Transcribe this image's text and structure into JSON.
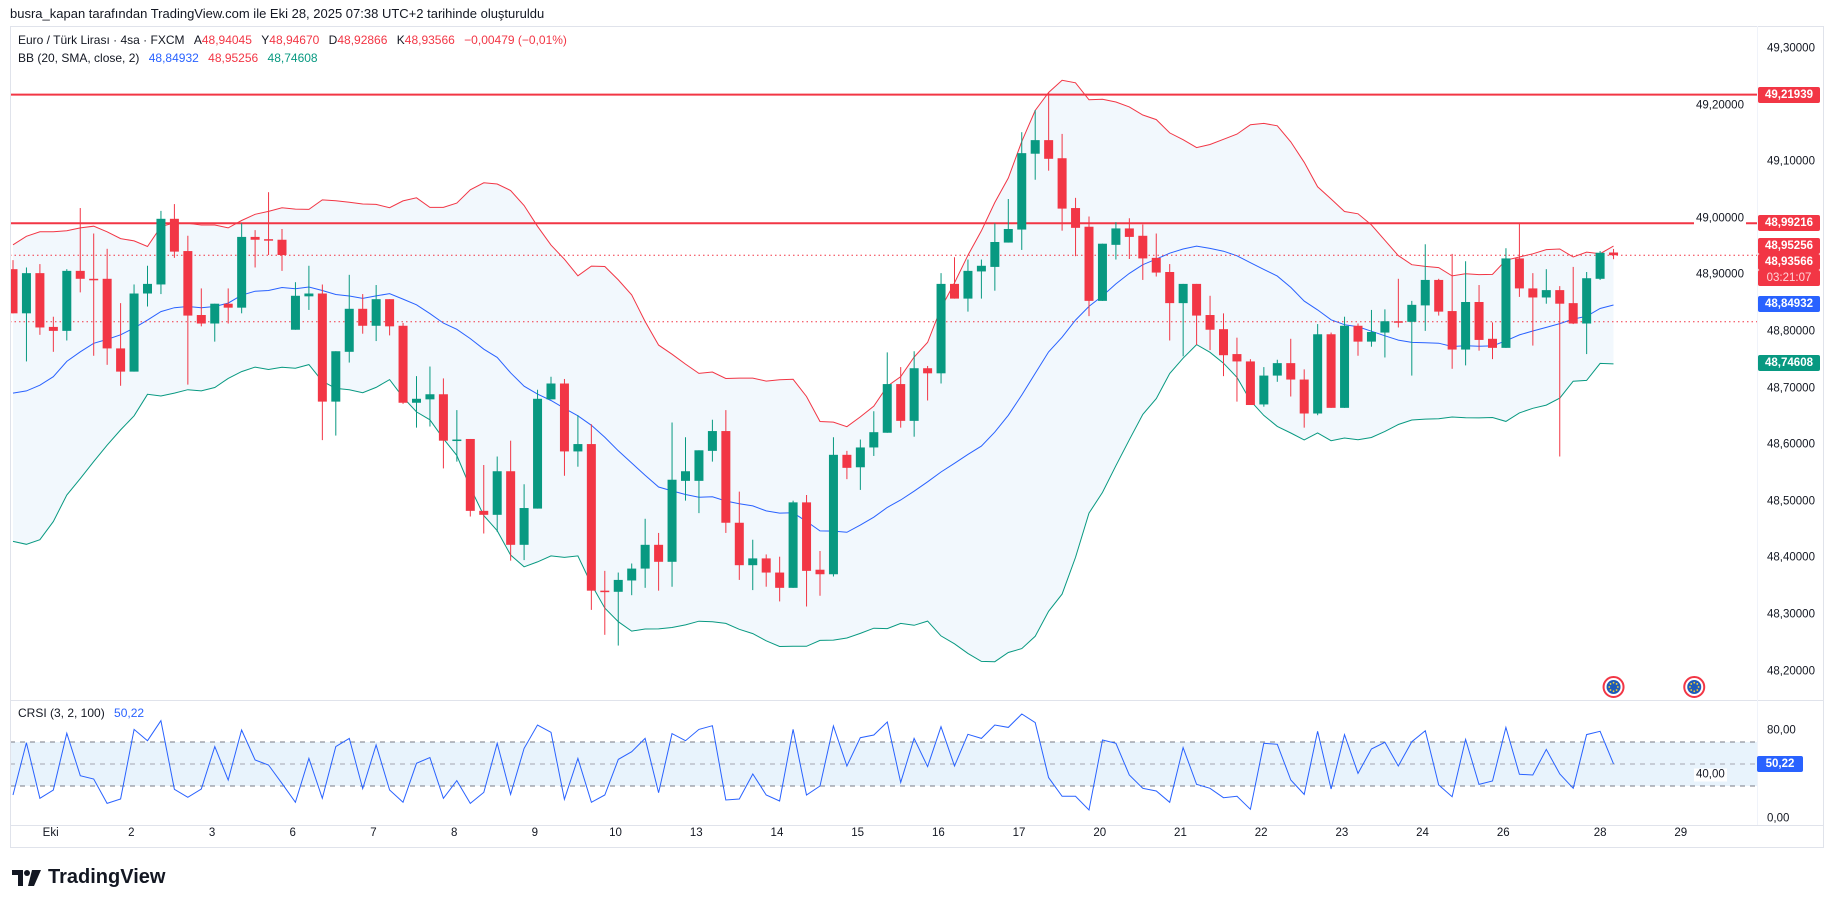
{
  "header": {
    "text": "busra_kapan tarafından TradingView.com ile Eki 28, 2025 07:38 UTC+2 tarihinde oluşturuldu"
  },
  "legend": {
    "symbol": "Euro / Türk Lirası · 4sa · FXCM",
    "open_label": "A",
    "open": "48,94045",
    "high_label": "Y",
    "high": "48,94670",
    "low_label": "D",
    "low": "48,92866",
    "close_label": "K",
    "close": "48,93566",
    "change": "−0,00479 (−0,01%)",
    "bb_title": "BB (20, SMA, close, 2)",
    "bb_basis": "48,84932",
    "bb_upper": "48,95256",
    "bb_lower": "48,74608"
  },
  "crsi_legend": {
    "title": "CRSI (3, 2, 100)",
    "value": "50,22"
  },
  "logo": {
    "text": "TradingView"
  },
  "colors": {
    "up": "#089981",
    "down": "#f23645",
    "basis": "#2962ff",
    "upper": "#f23645",
    "lower": "#089981",
    "band_fill": "#f2f8fd",
    "crsi": "#2962ff",
    "crsi_fill": "#e8f3fc"
  },
  "price_axis": {
    "ticks": [
      {
        "value": 49.3,
        "label": "49,30000"
      },
      {
        "value": 49.2,
        "label": "49,20000"
      },
      {
        "value": 49.1,
        "label": "49,10000"
      },
      {
        "value": 49.0,
        "label": "49,00000"
      },
      {
        "value": 48.9,
        "label": "48,90000"
      },
      {
        "value": 48.8,
        "label": "48,80000"
      },
      {
        "value": 48.7,
        "label": "48,70000"
      },
      {
        "value": 48.6,
        "label": "48,60000"
      },
      {
        "value": 48.5,
        "label": "48,50000"
      },
      {
        "value": 48.4,
        "label": "48,40000"
      },
      {
        "value": 48.3,
        "label": "48,30000"
      },
      {
        "value": 48.2,
        "label": "48,20000"
      }
    ],
    "badges": [
      {
        "value": 49.21939,
        "label": "49,21939",
        "color": "#f23645"
      },
      {
        "value": 48.99216,
        "label": "48,99216",
        "color": "#f23645"
      },
      {
        "value": 48.95256,
        "label": "48,95256",
        "color": "#f23645"
      },
      {
        "value": 48.93566,
        "label": "48,93566",
        "color": "#f23645"
      },
      {
        "value": 48.93566,
        "label": "03:21:07",
        "color": "#f23645",
        "countdown": true
      },
      {
        "value": 48.84932,
        "label": "48,84932",
        "color": "#2962ff"
      },
      {
        "value": 48.74608,
        "label": "48,74608",
        "color": "#089981"
      }
    ]
  },
  "crsi_axis": {
    "ticks": [
      {
        "value": 80,
        "label": "80,00"
      },
      {
        "value": 40,
        "label": "40,00"
      },
      {
        "value": 0,
        "label": "0,00"
      }
    ],
    "badge": {
      "value": 50.22,
      "label": "50,22",
      "color": "#2962ff"
    }
  },
  "time_axis": {
    "ticks": [
      {
        "index": 2.8,
        "label": "Eki"
      },
      {
        "index": 8.8,
        "label": "2"
      },
      {
        "index": 14.8,
        "label": "3"
      },
      {
        "index": 20.8,
        "label": "6"
      },
      {
        "index": 26.8,
        "label": "7"
      },
      {
        "index": 32.8,
        "label": "8"
      },
      {
        "index": 38.8,
        "label": "9"
      },
      {
        "index": 44.8,
        "label": "10"
      },
      {
        "index": 50.8,
        "label": "13"
      },
      {
        "index": 56.8,
        "label": "14"
      },
      {
        "index": 62.8,
        "label": "15"
      },
      {
        "index": 68.8,
        "label": "16"
      },
      {
        "index": 74.8,
        "label": "17"
      },
      {
        "index": 80.8,
        "label": "20"
      },
      {
        "index": 86.8,
        "label": "21"
      },
      {
        "index": 92.8,
        "label": "22"
      },
      {
        "index": 98.8,
        "label": "23"
      },
      {
        "index": 104.8,
        "label": "24"
      },
      {
        "index": 110.8,
        "label": "26"
      },
      {
        "index": 118,
        "label": "28"
      },
      {
        "index": 124,
        "label": "29"
      }
    ]
  },
  "chart_data": {
    "type": "candlestick",
    "title": "Euro / Türk Lirası · 4sa · FXCM",
    "ylim": [
      48.17,
      49.33
    ],
    "horizontal_lines": [
      49.21939,
      48.99216
    ],
    "dotted_lines": [
      48.93566,
      48.818
    ],
    "event_markers": [
      119,
      125
    ],
    "ohlc": [
      [
        48.911,
        48.927,
        48.833,
        48.833
      ],
      [
        48.833,
        48.914,
        48.748,
        48.904
      ],
      [
        48.904,
        48.92,
        48.795,
        48.808
      ],
      [
        48.809,
        48.827,
        48.765,
        48.802
      ],
      [
        48.802,
        48.911,
        48.785,
        48.908
      ],
      [
        48.908,
        49.019,
        48.87,
        48.894
      ],
      [
        48.894,
        48.974,
        48.758,
        48.893
      ],
      [
        48.894,
        48.947,
        48.742,
        48.771
      ],
      [
        48.771,
        48.851,
        48.705,
        48.73
      ],
      [
        48.73,
        48.884,
        48.73,
        48.868
      ],
      [
        48.868,
        48.917,
        48.845,
        48.885
      ],
      [
        48.884,
        49.014,
        48.867,
        49.0
      ],
      [
        49.0,
        49.026,
        48.931,
        48.942
      ],
      [
        48.943,
        48.97,
        48.707,
        48.829
      ],
      [
        48.83,
        48.877,
        48.81,
        48.815
      ],
      [
        48.815,
        48.85,
        48.783,
        48.85
      ],
      [
        48.85,
        48.877,
        48.815,
        48.843
      ],
      [
        48.843,
        48.992,
        48.833,
        48.968
      ],
      [
        48.968,
        48.98,
        48.914,
        48.963
      ],
      [
        48.964,
        49.047,
        48.936,
        48.962
      ],
      [
        48.963,
        48.982,
        48.908,
        48.936
      ],
      [
        48.804,
        48.888,
        48.804,
        48.864
      ],
      [
        48.863,
        48.917,
        48.839,
        48.868
      ],
      [
        48.868,
        48.884,
        48.609,
        48.677
      ],
      [
        48.677,
        48.766,
        48.617,
        48.766
      ],
      [
        48.765,
        48.901,
        48.746,
        48.841
      ],
      [
        48.841,
        48.867,
        48.797,
        48.811
      ],
      [
        48.811,
        48.883,
        48.784,
        48.858
      ],
      [
        48.858,
        48.858,
        48.794,
        48.81
      ],
      [
        48.811,
        48.816,
        48.673,
        48.675
      ],
      [
        48.675,
        48.722,
        48.631,
        48.682
      ],
      [
        48.681,
        48.739,
        48.633,
        48.69
      ],
      [
        48.69,
        48.718,
        48.559,
        48.608
      ],
      [
        48.609,
        48.662,
        48.571,
        48.61
      ],
      [
        48.611,
        48.611,
        48.474,
        48.484
      ],
      [
        48.484,
        48.565,
        48.444,
        48.477
      ],
      [
        48.477,
        48.58,
        48.447,
        48.554
      ],
      [
        48.554,
        48.608,
        48.396,
        48.424
      ],
      [
        48.424,
        48.531,
        48.397,
        48.489
      ],
      [
        48.488,
        48.698,
        48.488,
        48.682
      ],
      [
        48.681,
        48.721,
        48.681,
        48.709
      ],
      [
        48.709,
        48.717,
        48.546,
        48.589
      ],
      [
        48.589,
        48.653,
        48.562,
        48.602
      ],
      [
        48.602,
        48.637,
        48.309,
        48.343
      ],
      [
        48.343,
        48.378,
        48.265,
        48.342
      ],
      [
        48.341,
        48.375,
        48.246,
        48.362
      ],
      [
        48.361,
        48.391,
        48.335,
        48.382
      ],
      [
        48.382,
        48.47,
        48.348,
        48.424
      ],
      [
        48.424,
        48.445,
        48.343,
        48.394
      ],
      [
        48.394,
        48.64,
        48.35,
        48.539
      ],
      [
        48.537,
        48.614,
        48.502,
        48.554
      ],
      [
        48.537,
        48.591,
        48.48,
        48.591
      ],
      [
        48.59,
        48.645,
        48.571,
        48.625
      ],
      [
        48.625,
        48.662,
        48.445,
        48.463
      ],
      [
        48.463,
        48.518,
        48.362,
        48.388
      ],
      [
        48.388,
        48.433,
        48.344,
        48.4
      ],
      [
        48.4,
        48.407,
        48.35,
        48.375
      ],
      [
        48.375,
        48.403,
        48.324,
        48.348
      ],
      [
        48.348,
        48.502,
        48.348,
        48.499
      ],
      [
        48.499,
        48.512,
        48.315,
        48.378
      ],
      [
        48.38,
        48.413,
        48.334,
        48.372
      ],
      [
        48.372,
        48.614,
        48.368,
        48.583
      ],
      [
        48.583,
        48.59,
        48.54,
        48.56
      ],
      [
        48.561,
        48.61,
        48.521,
        48.596
      ],
      [
        48.596,
        48.66,
        48.581,
        48.623
      ],
      [
        48.622,
        48.764,
        48.622,
        48.708
      ],
      [
        48.708,
        48.738,
        48.631,
        48.643
      ],
      [
        48.643,
        48.766,
        48.615,
        48.736
      ],
      [
        48.736,
        48.74,
        48.679,
        48.727
      ],
      [
        48.727,
        48.904,
        48.709,
        48.885
      ],
      [
        48.885,
        48.932,
        48.859,
        48.859
      ],
      [
        48.859,
        48.928,
        48.836,
        48.908
      ],
      [
        48.907,
        48.928,
        48.859,
        48.917
      ],
      [
        48.915,
        48.992,
        48.873,
        48.959
      ],
      [
        48.958,
        49.035,
        48.958,
        48.982
      ],
      [
        48.981,
        49.153,
        48.945,
        49.116
      ],
      [
        49.115,
        49.192,
        49.069,
        49.139
      ],
      [
        49.139,
        49.223,
        49.085,
        49.106
      ],
      [
        49.107,
        49.15,
        48.979,
        49.018
      ],
      [
        49.019,
        49.037,
        48.934,
        48.984
      ],
      [
        48.986,
        49.004,
        48.828,
        48.855
      ],
      [
        48.855,
        48.956,
        48.855,
        48.956
      ],
      [
        48.954,
        48.994,
        48.928,
        48.983
      ],
      [
        48.983,
        49.001,
        48.929,
        48.968
      ],
      [
        48.97,
        48.99,
        48.892,
        48.93
      ],
      [
        48.931,
        48.974,
        48.898,
        48.905
      ],
      [
        48.906,
        48.92,
        48.785,
        48.851
      ],
      [
        48.851,
        48.885,
        48.757,
        48.885
      ],
      [
        48.885,
        48.885,
        48.777,
        48.829
      ],
      [
        48.83,
        48.864,
        48.768,
        48.804
      ],
      [
        48.805,
        48.833,
        48.722,
        48.759
      ],
      [
        48.761,
        48.79,
        48.677,
        48.748
      ],
      [
        48.748,
        48.752,
        48.671,
        48.671
      ],
      [
        48.672,
        48.738,
        48.668,
        48.723
      ],
      [
        48.723,
        48.751,
        48.712,
        48.745
      ],
      [
        48.745,
        48.788,
        48.686,
        48.716
      ],
      [
        48.716,
        48.734,
        48.631,
        48.656
      ],
      [
        48.656,
        48.814,
        48.653,
        48.796
      ],
      [
        48.796,
        48.799,
        48.666,
        48.666
      ],
      [
        48.666,
        48.827,
        48.666,
        48.811
      ],
      [
        48.811,
        48.815,
        48.758,
        48.783
      ],
      [
        48.783,
        48.839,
        48.774,
        48.8
      ],
      [
        48.799,
        48.84,
        48.755,
        48.819
      ],
      [
        48.819,
        48.894,
        48.808,
        48.818
      ],
      [
        48.818,
        48.855,
        48.723,
        48.848
      ],
      [
        48.847,
        48.955,
        48.802,
        48.892
      ],
      [
        48.892,
        48.894,
        48.829,
        48.836
      ],
      [
        48.837,
        48.938,
        48.735,
        48.769
      ],
      [
        48.769,
        48.925,
        48.741,
        48.853
      ],
      [
        48.853,
        48.883,
        48.767,
        48.786
      ],
      [
        48.788,
        48.817,
        48.752,
        48.772
      ],
      [
        48.772,
        48.948,
        48.772,
        48.93
      ],
      [
        48.93,
        48.991,
        48.862,
        48.877
      ],
      [
        48.877,
        48.904,
        48.776,
        48.861
      ],
      [
        48.861,
        48.911,
        48.85,
        48.874
      ],
      [
        48.874,
        48.881,
        48.58,
        48.85
      ],
      [
        48.851,
        48.915,
        48.814,
        48.815
      ],
      [
        48.815,
        48.906,
        48.761,
        48.895
      ],
      [
        48.894,
        48.943,
        48.892,
        48.94
      ],
      [
        48.94045,
        48.9467,
        48.92866,
        48.93566
      ]
    ],
    "bb_initial": {
      "upper": [
        48.954,
        48.969,
        48.977,
        48.977,
        48.979,
        48.984,
        48.987,
        48.977,
        48.965,
        48.961,
        48.951,
        48.986,
        48.993,
        48.992,
        48.989,
        48.989,
        48.984,
        48.997,
        49.008
      ],
      "basis": [
        48.692,
        48.696,
        48.706,
        48.721,
        48.748,
        48.765,
        48.78,
        48.787,
        48.795,
        48.807,
        48.821,
        48.836,
        48.843,
        48.845,
        48.843,
        48.845,
        48.851,
        48.865,
        48.872
      ],
      "lower": [
        48.43,
        48.425,
        48.433,
        48.465,
        48.512,
        48.541,
        48.571,
        48.6,
        48.627,
        48.652,
        48.69,
        48.687,
        48.692,
        48.698,
        48.696,
        48.702,
        48.718,
        48.73,
        48.738
      ]
    },
    "bb_params": {
      "length": 20,
      "mult": 2
    },
    "crsi": {
      "ylim": [
        0,
        100
      ],
      "bands": [
        70,
        50,
        30
      ],
      "values": [
        21.8,
        69.4,
        18.8,
        26.4,
        77.9,
        39.4,
        36.4,
        14.2,
        18.2,
        81.5,
        71.2,
        89.4,
        27.0,
        19.7,
        27.3,
        65.8,
        35.5,
        80.9,
        53.6,
        49.1,
        32.4,
        15.2,
        55.1,
        18.8,
        65.8,
        73.3,
        27.6,
        67.3,
        26.4,
        15.2,
        50.6,
        55.8,
        18.8,
        34.9,
        14.2,
        24.2,
        68.8,
        22.4,
        64.2,
        85.5,
        78.8,
        17.9,
        55.1,
        15.2,
        21.8,
        54.2,
        61.2,
        73.3,
        23.9,
        77.6,
        71.2,
        81.5,
        84.8,
        17.3,
        18.2,
        40.9,
        21.8,
        16.4,
        81.5,
        21.8,
        30.0,
        84.5,
        48.2,
        73.9,
        76.4,
        88.2,
        33.3,
        73.3,
        47.6,
        83.9,
        48.2,
        77.0,
        73.3,
        85.5,
        83.3,
        95.5,
        87.6,
        37.6,
        20.6,
        20.6,
        8.2,
        71.8,
        68.8,
        40.0,
        27.9,
        25.5,
        15.2,
        64.9,
        31.5,
        27.9,
        19.4,
        20.6,
        8.8,
        68.8,
        67.9,
        35.5,
        22.4,
        79.7,
        27.3,
        76.7,
        41.5,
        63.6,
        69.7,
        48.2,
        70.3,
        80.3,
        30.9,
        20.3,
        72.4,
        31.5,
        34.5,
        83.3,
        40.6,
        40.0,
        63.3,
        40.9,
        27.9,
        76.7,
        79.7,
        50.22
      ]
    }
  }
}
